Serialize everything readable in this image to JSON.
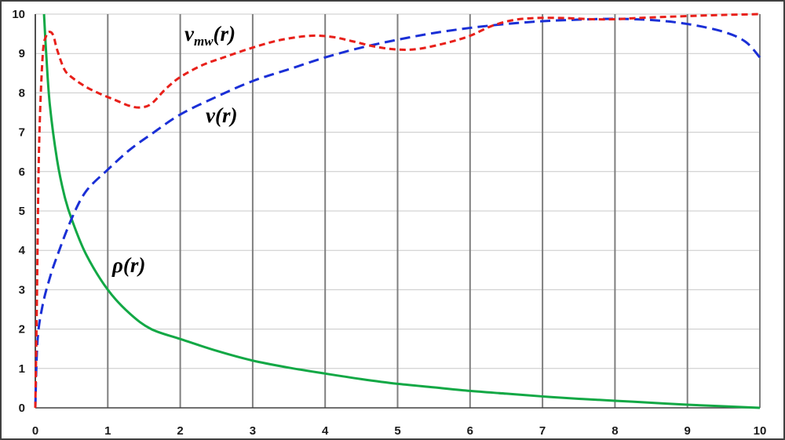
{
  "chart_data": {
    "type": "line",
    "title": "",
    "xlabel": "",
    "ylabel": "",
    "xlim": [
      0,
      10
    ],
    "ylim": [
      0,
      10
    ],
    "x_ticks": [
      "0",
      "1",
      "2",
      "3",
      "4",
      "5",
      "6",
      "7",
      "8",
      "9",
      "10"
    ],
    "y_ticks": [
      "0",
      "1",
      "2",
      "3",
      "4",
      "5",
      "6",
      "7",
      "8",
      "9",
      "10"
    ],
    "grid": {
      "vertical": true,
      "horizontal": true
    },
    "legend": "none",
    "colors": {
      "v_mw": "#e8201a",
      "v": "#1a2fd6",
      "rho": "#12a845",
      "grid_vertical": "#7f7f7f",
      "grid_horizontal": "#c8c8c8",
      "axis": "#404040"
    },
    "series": [
      {
        "key": "v_mw",
        "style": "dashed",
        "label_main": "v",
        "label_sub": "mw",
        "label_tail": "(r)",
        "points": [
          [
            0,
            0
          ],
          [
            0.02,
            2.5
          ],
          [
            0.05,
            6.5
          ],
          [
            0.1,
            8.9
          ],
          [
            0.15,
            9.45
          ],
          [
            0.2,
            9.55
          ],
          [
            0.25,
            9.45
          ],
          [
            0.3,
            9.1
          ],
          [
            0.4,
            8.6
          ],
          [
            0.5,
            8.4
          ],
          [
            0.7,
            8.15
          ],
          [
            0.9,
            7.97
          ],
          [
            1.1,
            7.82
          ],
          [
            1.3,
            7.67
          ],
          [
            1.45,
            7.63
          ],
          [
            1.6,
            7.72
          ],
          [
            1.8,
            8.1
          ],
          [
            2.0,
            8.4
          ],
          [
            2.3,
            8.7
          ],
          [
            2.6,
            8.9
          ],
          [
            3.0,
            9.15
          ],
          [
            3.4,
            9.35
          ],
          [
            3.8,
            9.45
          ],
          [
            4.1,
            9.42
          ],
          [
            4.4,
            9.3
          ],
          [
            4.7,
            9.17
          ],
          [
            5.0,
            9.1
          ],
          [
            5.3,
            9.12
          ],
          [
            5.7,
            9.28
          ],
          [
            6.0,
            9.45
          ],
          [
            6.3,
            9.7
          ],
          [
            6.6,
            9.85
          ],
          [
            6.9,
            9.9
          ],
          [
            7.3,
            9.9
          ],
          [
            7.7,
            9.87
          ],
          [
            8.0,
            9.87
          ],
          [
            8.3,
            9.9
          ],
          [
            8.7,
            9.93
          ],
          [
            9.0,
            9.95
          ],
          [
            9.5,
            9.98
          ],
          [
            10.0,
            10.0
          ]
        ]
      },
      {
        "key": "v",
        "style": "dashed",
        "label_main": "v",
        "label_sub": "",
        "label_tail": "(r)",
        "points": [
          [
            0,
            0
          ],
          [
            0.03,
            1.7
          ],
          [
            0.1,
            2.6
          ],
          [
            0.2,
            3.3
          ],
          [
            0.3,
            3.85
          ],
          [
            0.5,
            4.8
          ],
          [
            0.7,
            5.5
          ],
          [
            1.0,
            6.05
          ],
          [
            1.3,
            6.55
          ],
          [
            1.6,
            6.95
          ],
          [
            2.0,
            7.45
          ],
          [
            2.5,
            7.9
          ],
          [
            3.0,
            8.3
          ],
          [
            3.5,
            8.6
          ],
          [
            4.0,
            8.9
          ],
          [
            4.5,
            9.15
          ],
          [
            5.0,
            9.35
          ],
          [
            5.5,
            9.52
          ],
          [
            6.0,
            9.65
          ],
          [
            6.5,
            9.75
          ],
          [
            7.0,
            9.82
          ],
          [
            7.5,
            9.86
          ],
          [
            8.0,
            9.88
          ],
          [
            8.5,
            9.85
          ],
          [
            9.0,
            9.75
          ],
          [
            9.5,
            9.55
          ],
          [
            9.8,
            9.3
          ],
          [
            10.0,
            8.9
          ]
        ]
      },
      {
        "key": "rho",
        "style": "solid",
        "label_main": "ρ",
        "label_sub": "",
        "label_tail": "(r)",
        "points": [
          [
            0.12,
            10.0
          ],
          [
            0.15,
            9.0
          ],
          [
            0.2,
            7.7
          ],
          [
            0.3,
            6.3
          ],
          [
            0.4,
            5.4
          ],
          [
            0.5,
            4.8
          ],
          [
            0.7,
            3.9
          ],
          [
            1.0,
            3.0
          ],
          [
            1.3,
            2.4
          ],
          [
            1.6,
            2.0
          ],
          [
            2.0,
            1.75
          ],
          [
            2.5,
            1.45
          ],
          [
            3.0,
            1.2
          ],
          [
            3.5,
            1.02
          ],
          [
            4.0,
            0.87
          ],
          [
            4.5,
            0.73
          ],
          [
            5.0,
            0.61
          ],
          [
            5.5,
            0.52
          ],
          [
            6.0,
            0.43
          ],
          [
            6.5,
            0.36
          ],
          [
            7.0,
            0.29
          ],
          [
            7.5,
            0.23
          ],
          [
            8.0,
            0.18
          ],
          [
            8.5,
            0.13
          ],
          [
            9.0,
            0.08
          ],
          [
            9.5,
            0.04
          ],
          [
            10.0,
            0.0
          ]
        ]
      }
    ]
  }
}
